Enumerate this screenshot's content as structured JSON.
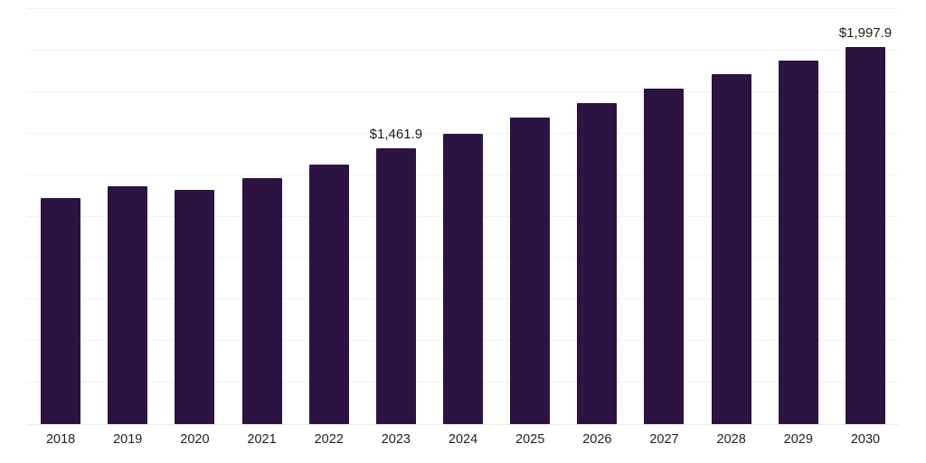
{
  "chart_data": {
    "type": "bar",
    "title": "",
    "xlabel": "",
    "ylabel": "",
    "categories": [
      "2018",
      "2019",
      "2020",
      "2021",
      "2022",
      "2023",
      "2024",
      "2025",
      "2026",
      "2027",
      "2028",
      "2029",
      "2030"
    ],
    "values": [
      1198.0,
      1262.0,
      1240.0,
      1303.0,
      1378.0,
      1461.9,
      1540.0,
      1626.0,
      1700.0,
      1780.0,
      1853.0,
      1925.0,
      1997.9
    ],
    "data_labels": [
      "",
      "",
      "",
      "",
      "",
      "$1,461.9",
      "",
      "",
      "",
      "",
      "",
      "",
      "$1,997.9"
    ],
    "ylim": [
      0,
      2200
    ],
    "grid": "horizontal-faint",
    "legend": "none",
    "bar_color": "#2c1342",
    "label_color": "#1a1a1a",
    "tick_color": "#222222"
  }
}
